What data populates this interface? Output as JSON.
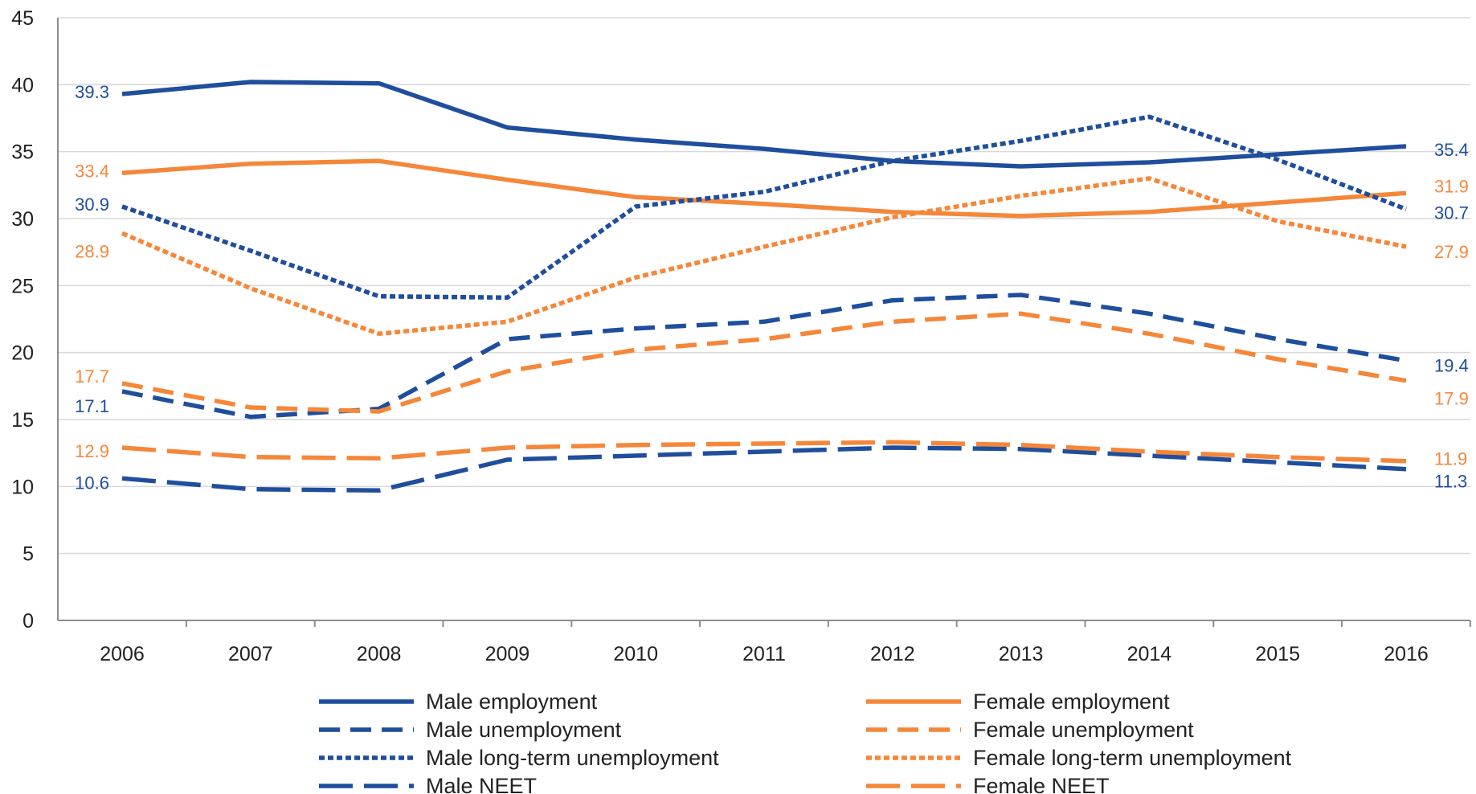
{
  "chart_data": {
    "type": "line",
    "title": "",
    "xlabel": "",
    "ylabel": "",
    "x": [
      "2006",
      "2007",
      "2008",
      "2009",
      "2010",
      "2011",
      "2012",
      "2013",
      "2014",
      "2015",
      "2016"
    ],
    "ylim": [
      0,
      45
    ],
    "yticks": [
      0,
      5,
      10,
      15,
      20,
      25,
      30,
      35,
      40,
      45
    ],
    "grid": true,
    "legend_position": "bottom",
    "colors": {
      "male": "#1f4e9c",
      "female": "#f5873a"
    },
    "series": [
      {
        "name": "Male employment",
        "color": "#1f4e9c",
        "dash": "solid",
        "values": [
          39.3,
          40.2,
          40.1,
          36.8,
          35.9,
          35.2,
          34.3,
          33.9,
          34.2,
          34.8,
          35.4
        ],
        "labels": {
          "first": "39.3",
          "last": "35.4"
        }
      },
      {
        "name": "Female employment",
        "color": "#f5873a",
        "dash": "solid",
        "values": [
          33.4,
          34.1,
          34.3,
          32.9,
          31.6,
          31.1,
          30.5,
          30.2,
          30.5,
          31.2,
          31.9
        ],
        "labels": {
          "first": "33.4",
          "last": "31.9"
        }
      },
      {
        "name": "Male unemployment",
        "color": "#1f4e9c",
        "dash": "dash",
        "values": [
          17.1,
          15.2,
          15.8,
          21.0,
          21.8,
          22.3,
          23.9,
          24.3,
          22.9,
          21.0,
          19.4
        ],
        "labels": {
          "first": "17.1",
          "last": "19.4"
        }
      },
      {
        "name": "Female unemployment",
        "color": "#f5873a",
        "dash": "dash",
        "values": [
          17.7,
          15.9,
          15.6,
          18.6,
          20.2,
          21.0,
          22.3,
          22.9,
          21.4,
          19.5,
          17.9
        ],
        "labels": {
          "first": "17.7",
          "last": "17.9"
        }
      },
      {
        "name": "Male long-term unemployment",
        "color": "#1f4e9c",
        "dash": "dot",
        "values": [
          30.9,
          27.6,
          24.2,
          24.1,
          30.9,
          32.0,
          34.3,
          35.8,
          37.6,
          34.4,
          30.7
        ],
        "labels": {
          "first": "30.9",
          "last": "30.7"
        }
      },
      {
        "name": "Female long-term unemployment",
        "color": "#f5873a",
        "dash": "dot",
        "values": [
          28.9,
          24.8,
          21.4,
          22.3,
          25.6,
          27.9,
          30.1,
          31.7,
          33.0,
          29.8,
          27.9
        ],
        "labels": {
          "first": "28.9",
          "last": "27.9"
        }
      },
      {
        "name": "Male NEET",
        "color": "#1f4e9c",
        "dash": "longdash",
        "values": [
          10.6,
          9.8,
          9.7,
          12.0,
          12.3,
          12.6,
          12.9,
          12.8,
          12.3,
          11.8,
          11.3
        ],
        "labels": {
          "first": "10.6",
          "last": "11.3"
        }
      },
      {
        "name": "Female NEET",
        "color": "#f5873a",
        "dash": "longdash",
        "values": [
          12.9,
          12.2,
          12.1,
          12.9,
          13.1,
          13.2,
          13.3,
          13.1,
          12.6,
          12.2,
          11.9
        ],
        "labels": {
          "first": "12.9",
          "last": "11.9"
        }
      }
    ]
  }
}
